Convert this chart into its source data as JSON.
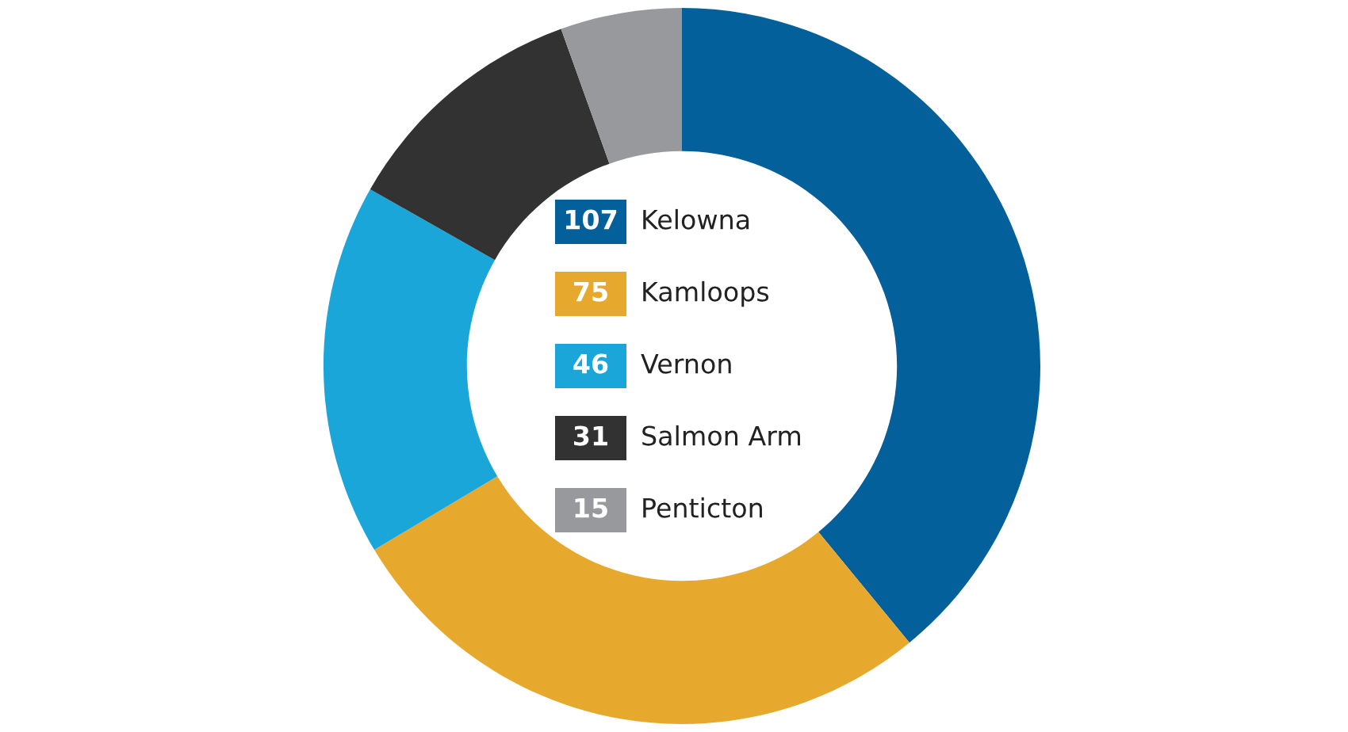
{
  "chart_data": {
    "type": "donut",
    "categories": [
      "Kelowna",
      "Kamloops",
      "Vernon",
      "Salmon Arm",
      "Penticton"
    ],
    "values": [
      107,
      75,
      46,
      31,
      15
    ],
    "colors": [
      "#03609a",
      "#e6a92d",
      "#1aa6d9",
      "#323232",
      "#98999c"
    ],
    "data_labels": true,
    "legend": "center"
  }
}
